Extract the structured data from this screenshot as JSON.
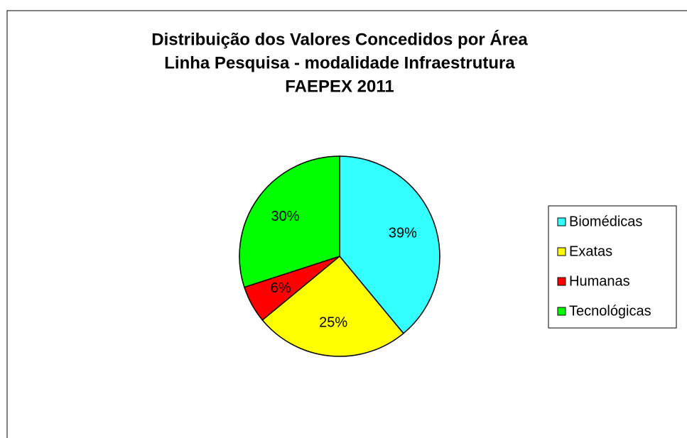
{
  "chart_data": {
    "type": "pie",
    "title": [
      "Distribuição dos Valores Concedidos por Área",
      "Linha Pesquisa - modalidade Infraestrutura",
      "FAEPEX 2011"
    ],
    "categories": [
      "Biomédicas",
      "Exatas",
      "Humanas",
      "Tecnológicas"
    ],
    "values": [
      39,
      25,
      6,
      30
    ],
    "value_labels": [
      "39%",
      "25%",
      "6%",
      "30%"
    ],
    "colors": [
      "#33ffff",
      "#ffff00",
      "#ff0000",
      "#00ff00"
    ],
    "legend": "right"
  }
}
